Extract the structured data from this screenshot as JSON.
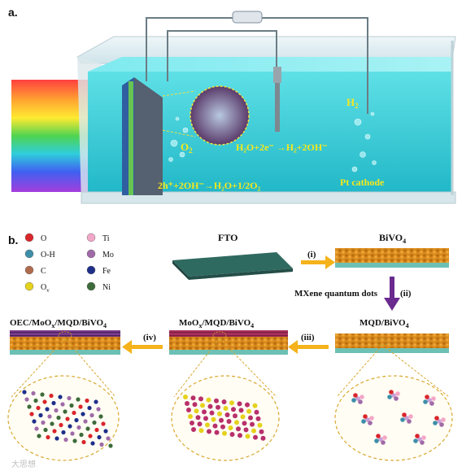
{
  "panel_a": {
    "letter": "a.",
    "labels": {
      "h2": "H",
      "h2_sub": "2",
      "o2": "O",
      "o2_sub": "2",
      "cathode_reaction": "H₂O+2e⁻ →H₂+2OH⁻",
      "anode_reaction": "2h⁺+2OH⁻→H₂O+1/2O₂",
      "pt_cathode": "Pt cathode"
    }
  },
  "panel_b": {
    "letter": "b.",
    "legend": [
      {
        "symbol": "O",
        "color": "#d9262b"
      },
      {
        "symbol": "Ti",
        "color": "#f3a7c8"
      },
      {
        "symbol": "O-H",
        "color": "#3d8ea8"
      },
      {
        "symbol": "Mo",
        "color": "#a06aa8"
      },
      {
        "symbol": "C",
        "color": "#b06a4e"
      },
      {
        "symbol": "Fe",
        "color": "#1e2f8a"
      },
      {
        "symbol": "O",
        "sub": "v",
        "color": "#e5d21d"
      },
      {
        "symbol": "Ni",
        "color": "#3d6b3a"
      }
    ],
    "stages": {
      "fto": "FTO",
      "bivo4": "BiVO",
      "bivo4_sub": "4",
      "mqd_bivo4": "MQD/BiVO",
      "mqd_bivo4_sub": "4",
      "moox_mqd_bivo4_a": "MoO",
      "moox_mqd_bivo4_x": "x",
      "moox_mqd_bivo4_b": "/MQD/BiVO",
      "moox_mqd_bivo4_sub": "4",
      "oec_a": "OEC/MoO",
      "oec_x": "x",
      "oec_b": "/MQD/BiVO",
      "oec_sub": "4"
    },
    "steps": {
      "i": "(i)",
      "ii": "(ii)",
      "iii": "(iii)",
      "iv": "(iv)",
      "mxene": "MXene quantum dots"
    }
  },
  "watermark": "大思想"
}
